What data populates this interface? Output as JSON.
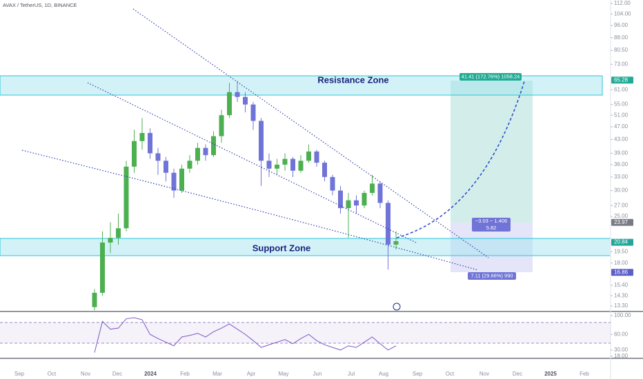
{
  "chart_data": {
    "type": "candlestick",
    "title": "AVAX / TetherUS, 1D, BINANCE",
    "log_scale": true,
    "ylim": [
      12.8,
      114.8
    ],
    "yticks": [
      {
        "value": 112,
        "label": "112.00"
      },
      {
        "value": 104,
        "label": "104.00"
      },
      {
        "value": 96,
        "label": "96.00"
      },
      {
        "value": 88,
        "label": "88.00"
      },
      {
        "value": 80.5,
        "label": "80.50"
      },
      {
        "value": 73,
        "label": "73.00"
      },
      {
        "value": 61,
        "label": "61.00"
      },
      {
        "value": 55,
        "label": "55.00"
      },
      {
        "value": 51,
        "label": "51.00"
      },
      {
        "value": 47,
        "label": "47.00"
      },
      {
        "value": 43,
        "label": "43.00"
      },
      {
        "value": 39,
        "label": "39.00"
      },
      {
        "value": 36,
        "label": "36.00"
      },
      {
        "value": 33,
        "label": "33.00"
      },
      {
        "value": 30,
        "label": "30.00"
      },
      {
        "value": 27,
        "label": "27.00"
      },
      {
        "value": 25,
        "label": "25.00"
      },
      {
        "value": 19.5,
        "label": "19.50"
      },
      {
        "value": 18,
        "label": "18.00"
      },
      {
        "value": 15.4,
        "label": "15.40"
      },
      {
        "value": 14.3,
        "label": "14.30"
      },
      {
        "value": 13.3,
        "label": "13.30"
      }
    ],
    "x_labels": [
      "Sep",
      "Oct",
      "Nov",
      "Dec",
      "2024",
      "Feb",
      "Mar",
      "Apr",
      "May",
      "Jun",
      "Jul",
      "Aug",
      "Sep",
      "Oct",
      "Nov",
      "Dec",
      "2025",
      "Feb"
    ],
    "up_color": "#4caf50",
    "down_color": "#6f74d6",
    "open": [
      13.2,
      14.6,
      20.8,
      21.5,
      23.0,
      35.5,
      42.5,
      45.0,
      39.0,
      37.0,
      34.0,
      30.0,
      35.0,
      37.0,
      40.5,
      38.5,
      44.0,
      51.0,
      60.0,
      58.0,
      55.0,
      49.0,
      37.0,
      35.0,
      36.0,
      37.5,
      34.5,
      37.0,
      39.5,
      36.5,
      33.0,
      30.0,
      26.5,
      28.0,
      27.0,
      29.5,
      31.5,
      27.5,
      20.5
    ],
    "high": [
      15.0,
      22.5,
      24.0,
      25.5,
      37.0,
      46.0,
      50.0,
      46.5,
      40.5,
      38.0,
      35.0,
      36.0,
      38.5,
      42.0,
      41.5,
      45.5,
      53.0,
      64.0,
      65.0,
      60.0,
      56.0,
      50.0,
      39.0,
      37.5,
      39.0,
      38.0,
      38.5,
      41.5,
      40.0,
      37.0,
      33.5,
      31.0,
      29.5,
      29.0,
      30.0,
      33.5,
      32.0,
      28.0,
      22.5
    ],
    "low": [
      12.9,
      14.3,
      19.3,
      20.5,
      22.5,
      34.0,
      40.0,
      37.5,
      33.5,
      32.0,
      28.5,
      29.5,
      34.0,
      36.0,
      37.0,
      38.0,
      42.0,
      50.0,
      56.0,
      52.0,
      46.0,
      31.0,
      33.0,
      33.5,
      34.5,
      33.0,
      34.0,
      36.5,
      35.5,
      32.0,
      29.0,
      25.5,
      21.5,
      25.5,
      26.5,
      29.0,
      26.5,
      17.2,
      19.8
    ],
    "close": [
      14.6,
      20.8,
      21.5,
      23.0,
      35.5,
      42.5,
      45.0,
      39.0,
      37.0,
      34.0,
      30.0,
      35.0,
      37.0,
      40.5,
      38.5,
      44.0,
      51.0,
      60.0,
      58.0,
      55.0,
      49.0,
      37.0,
      35.0,
      36.0,
      37.5,
      34.5,
      37.0,
      39.5,
      36.5,
      33.0,
      30.0,
      26.5,
      28.0,
      27.0,
      29.5,
      31.5,
      27.5,
      20.5,
      21.0
    ],
    "price_tags": [
      {
        "value": 65.28,
        "color": "#22ab94"
      },
      {
        "value": 23.97,
        "color": "#787b86"
      },
      {
        "value": 20.84,
        "color": "#26a69a"
      },
      {
        "value": 16.86,
        "color": "#5b5fc7"
      }
    ],
    "rsi": {
      "color": "#7e57c2",
      "ylim": [
        14,
        100
      ],
      "yticks": [
        {
          "value": 100,
          "label": "100.00"
        },
        {
          "value": 60,
          "label": "60.00"
        },
        {
          "value": 30,
          "label": "30.00"
        },
        {
          "value": 18,
          "label": "18.00"
        }
      ],
      "values": [
        25,
        85,
        70,
        72,
        90,
        92,
        88,
        60,
        52,
        45,
        38,
        55,
        58,
        62,
        55,
        65,
        72,
        80,
        70,
        60,
        48,
        35,
        40,
        45,
        50,
        42,
        52,
        60,
        48,
        40,
        35,
        30,
        38,
        35,
        45,
        55,
        42,
        30,
        38
      ]
    },
    "annotations": {
      "resistance": "Resistance Zone",
      "support": "Support Zone",
      "target": "41.41 (172.76%) 1058.24",
      "entry": "−3.03 − 1.406",
      "entry_qty": "5.82",
      "stop": "7.11 (29.66%) 990"
    }
  }
}
